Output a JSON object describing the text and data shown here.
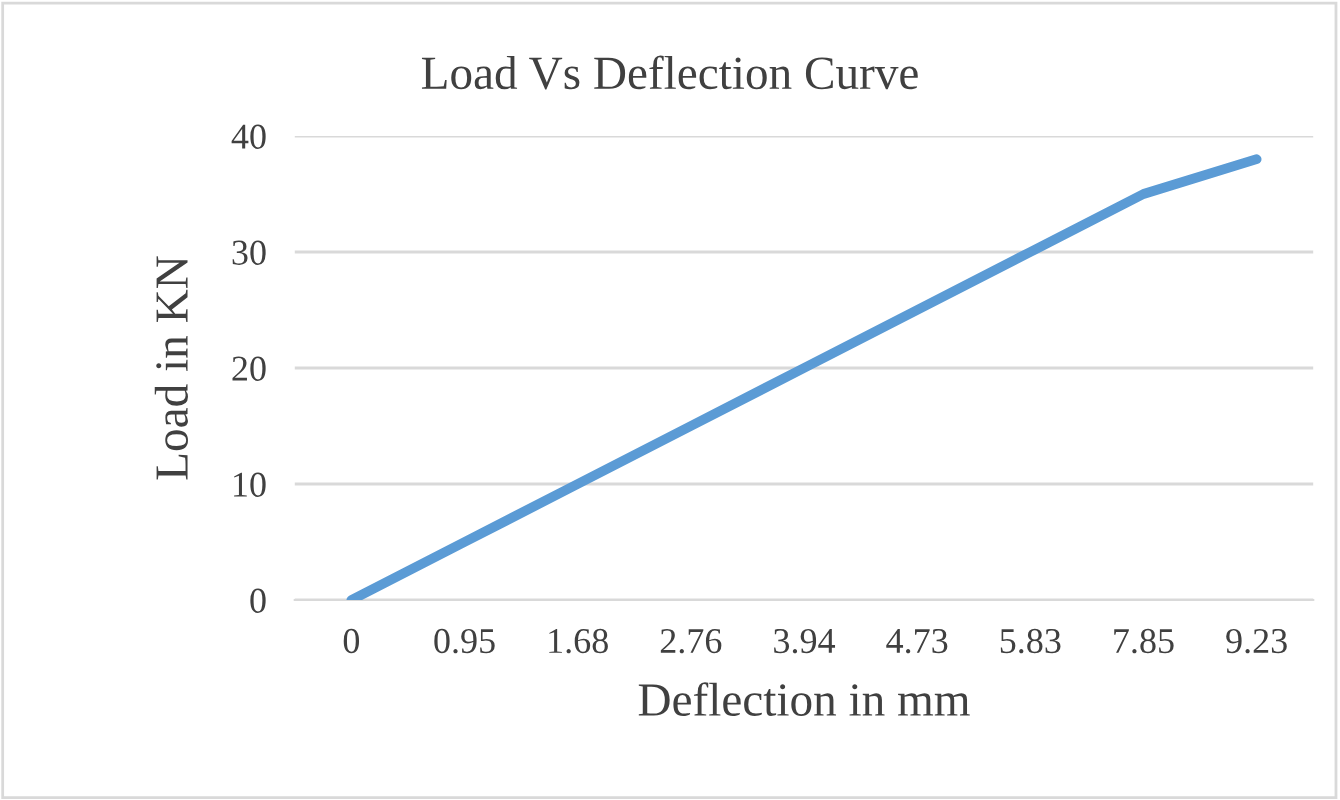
{
  "chart_data": {
    "type": "line",
    "title": "Load Vs Deflection Curve",
    "xlabel": "Deflection in mm",
    "ylabel": "Load in KN",
    "categories": [
      "0",
      "0.95",
      "1.68",
      "2.76",
      "3.94",
      "4.73",
      "5.83",
      "7.85",
      "9.23"
    ],
    "series": [
      {
        "color": "#5b9bd5",
        "values": [
          0,
          5,
          10,
          15,
          20,
          25,
          30,
          35,
          38
        ]
      }
    ],
    "ylim": [
      0,
      40
    ],
    "yticks": [
      0,
      10,
      20,
      30,
      40
    ],
    "grid": "y",
    "marker": "none",
    "line_style": "solid"
  }
}
